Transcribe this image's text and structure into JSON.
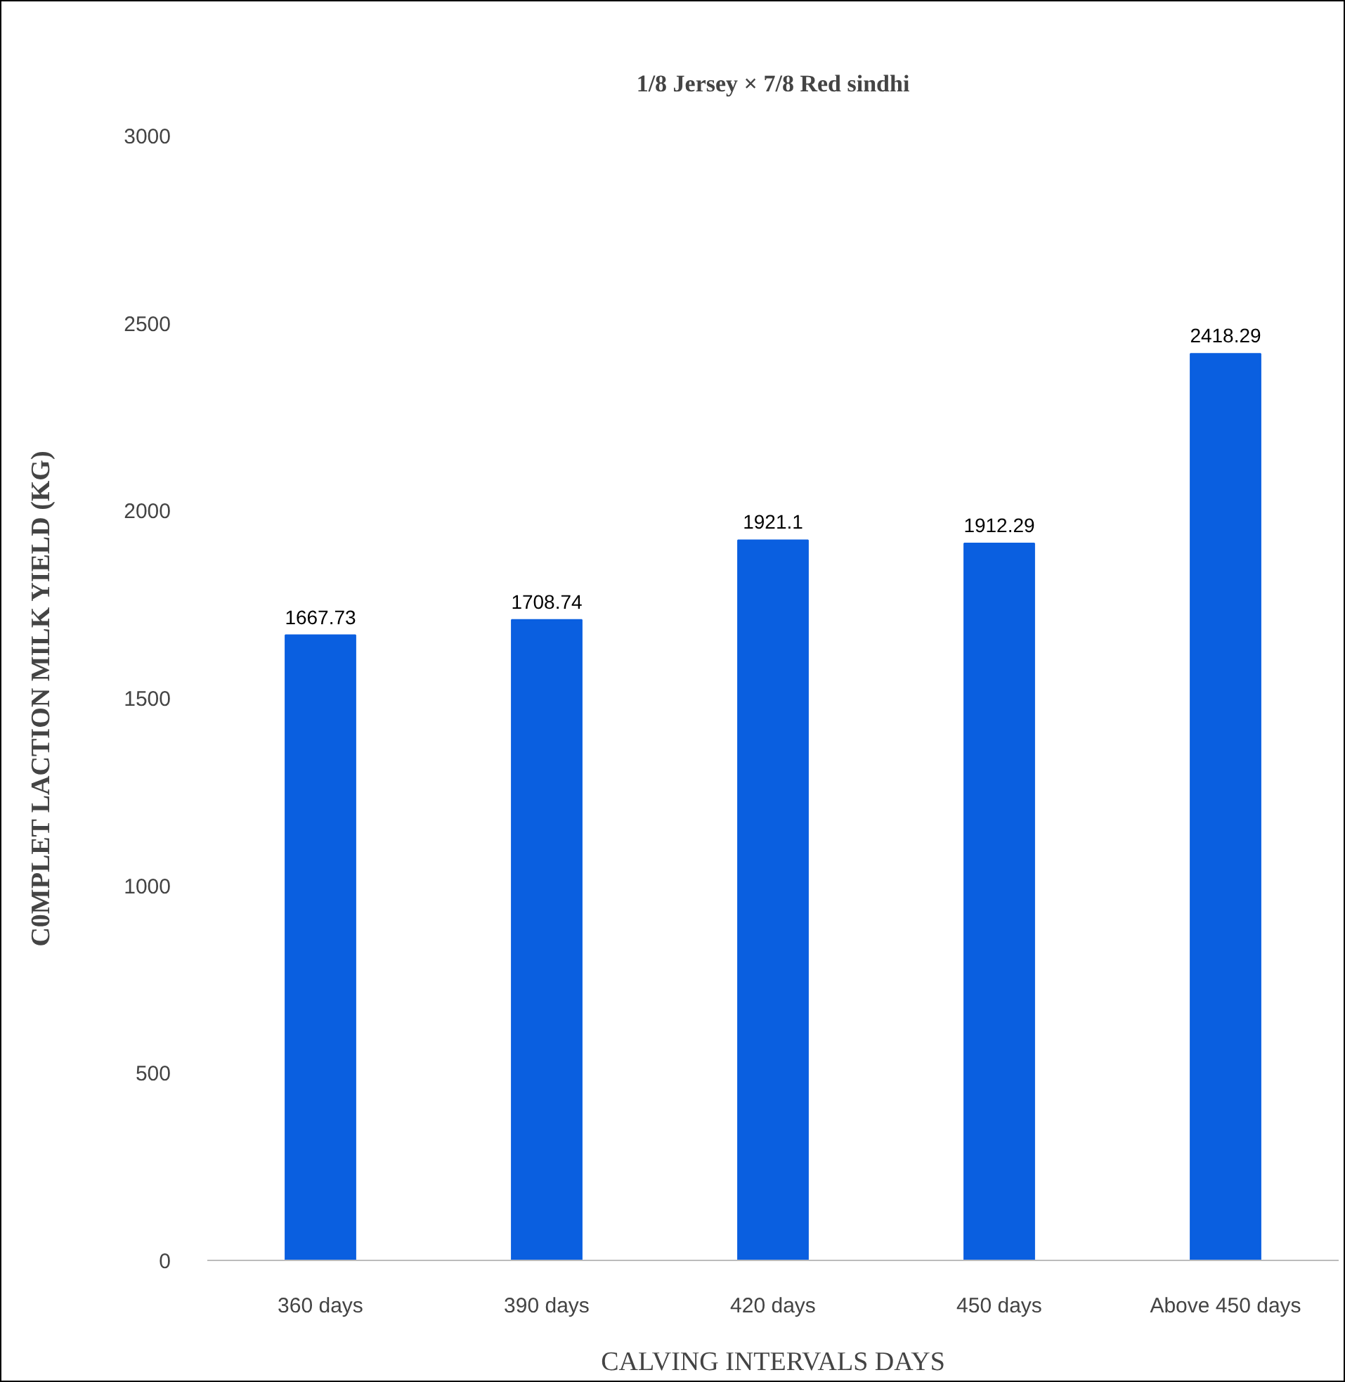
{
  "chart_data": {
    "type": "bar",
    "title": "1/8 Jersey × 7/8 Red sindhi",
    "xlabel": "CALVING INTERVALS DAYS",
    "ylabel": "C0MPLET LACTION MILK YIELD (KG)",
    "categories": [
      "360 days",
      "390 days",
      "420 days",
      "450 days",
      "Above 450 days"
    ],
    "values": [
      1667.73,
      1708.74,
      1921.1,
      1912.29,
      2418.29
    ],
    "color": "#0a5fe0",
    "ylim": [
      0,
      3000
    ],
    "yticks": [
      0,
      500,
      1000,
      1500,
      2000,
      2500,
      3000
    ],
    "grid": false,
    "data_labels": true
  }
}
